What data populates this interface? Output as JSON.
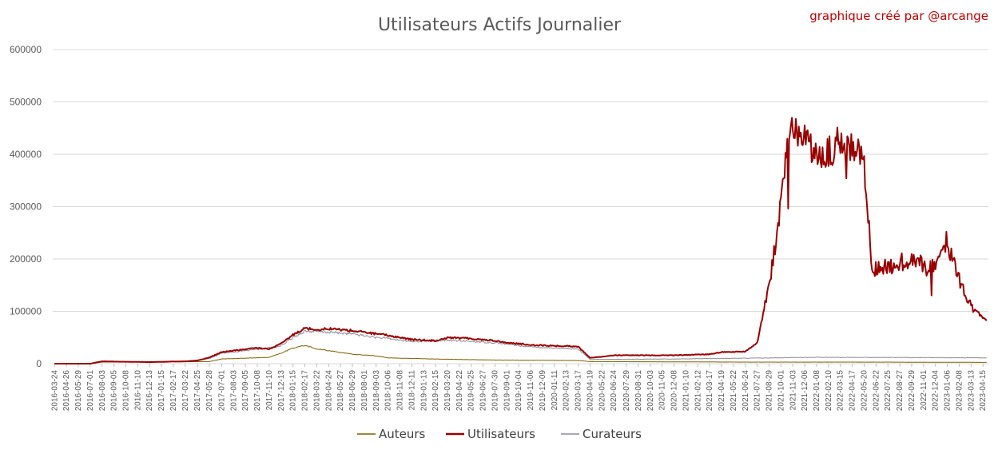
{
  "chart_data": {
    "type": "line",
    "title": "Utilisateurs Actifs Journalier",
    "credit": "graphique créé par @arcange",
    "xlabel": "",
    "ylabel": "",
    "ylim": [
      0,
      600000
    ],
    "yticks": [
      0,
      100000,
      200000,
      300000,
      400000,
      500000,
      600000
    ],
    "ytick_labels": [
      "0",
      "100000",
      "200000",
      "300000",
      "400000",
      "500000",
      "600000"
    ],
    "x_tick_labels": [
      "2016-03-24",
      "2016-04-26",
      "2016-05-29",
      "2016-07-01",
      "2016-08-03",
      "2016-09-05",
      "2016-10-08",
      "2016-11-10",
      "2016-12-13",
      "2017-01-15",
      "2017-02-17",
      "2017-03-22",
      "2017-04-25",
      "2017-05-28",
      "2017-07-01",
      "2017-08-03",
      "2017-09-05",
      "2017-10-08",
      "2017-11-10",
      "2017-12-13",
      "2018-01-15",
      "2018-02-17",
      "2018-03-22",
      "2018-04-24",
      "2018-05-27",
      "2018-06-29",
      "2018-08-01",
      "2018-09-03",
      "2018-10-06",
      "2018-11-08",
      "2018-12-11",
      "2019-01-13",
      "2019-02-15",
      "2019-03-20",
      "2019-04-22",
      "2019-05-25",
      "2019-06-27",
      "2019-07-30",
      "2019-09-01",
      "2019-10-04",
      "2019-11-06",
      "2019-12-09",
      "2020-01-11",
      "2020-02-13",
      "2020-03-17",
      "2020-04-19",
      "2020-05-22",
      "2020-06-24",
      "2020-07-29",
      "2020-08-31",
      "2020-10-03",
      "2020-11-05",
      "2020-12-08",
      "2021-01-10",
      "2021-02-12",
      "2021-03-17",
      "2021-04-19",
      "2021-05-22",
      "2021-06-24",
      "2021-07-27",
      "2021-08-29",
      "2021-10-01",
      "2021-11-03",
      "2021-12-06",
      "2022-01-08",
      "2022-02-10",
      "2022-03-15",
      "2022-04-17",
      "2022-05-20",
      "2022-06-22",
      "2022-07-25",
      "2022-08-27",
      "2022-09-29",
      "2022-11-01",
      "2022-12-04",
      "2023-01-06",
      "2023-02-08",
      "2023-03-13",
      "2023-04-15"
    ],
    "legend": {
      "position": "bottom"
    },
    "grid": true,
    "series": [
      {
        "name": "Auteurs",
        "color": "#7f6000",
        "points": [
          [
            "2016-03-24",
            0
          ],
          [
            "2016-07-01",
            0
          ],
          [
            "2016-08-03",
            3000
          ],
          [
            "2017-05-28",
            4000
          ],
          [
            "2017-07-01",
            9000
          ],
          [
            "2017-11-10",
            12000
          ],
          [
            "2017-12-13",
            20000
          ],
          [
            "2018-01-15",
            30000
          ],
          [
            "2018-02-17",
            35000
          ],
          [
            "2018-03-22",
            28000
          ],
          [
            "2018-04-24",
            25000
          ],
          [
            "2018-06-29",
            18000
          ],
          [
            "2018-09-03",
            15000
          ],
          [
            "2018-10-06",
            11000
          ],
          [
            "2018-12-11",
            10000
          ],
          [
            "2019-03-20",
            8500
          ],
          [
            "2019-07-30",
            7000
          ],
          [
            "2019-12-09",
            6500
          ],
          [
            "2020-03-17",
            6000
          ],
          [
            "2020-04-19",
            4000
          ],
          [
            "2020-12-08",
            3500
          ],
          [
            "2021-06-24",
            3000
          ],
          [
            "2021-12-06",
            3000
          ],
          [
            "2022-06-22",
            3000
          ],
          [
            "2023-04-25",
            2500
          ]
        ]
      },
      {
        "name": "Utilisateurs",
        "color": "#990000",
        "points": [
          [
            "2016-03-24",
            0
          ],
          [
            "2016-07-01",
            0
          ],
          [
            "2016-08-03",
            4500
          ],
          [
            "2016-09-05",
            4000
          ],
          [
            "2016-12-13",
            3000
          ],
          [
            "2017-03-22",
            4500
          ],
          [
            "2017-04-25",
            6000
          ],
          [
            "2017-05-28",
            12000
          ],
          [
            "2017-07-01",
            22000
          ],
          [
            "2017-08-03",
            25000
          ],
          [
            "2017-10-08",
            30000
          ],
          [
            "2017-11-10",
            28000
          ],
          [
            "2017-12-13",
            38000
          ],
          [
            "2018-01-15",
            55000
          ],
          [
            "2018-02-17",
            68000
          ],
          [
            "2018-03-22",
            65000
          ],
          [
            "2018-04-24",
            67000
          ],
          [
            "2018-06-29",
            63000
          ],
          [
            "2018-09-03",
            57000
          ],
          [
            "2018-10-06",
            54000
          ],
          [
            "2018-12-11",
            46000
          ],
          [
            "2019-02-15",
            44000
          ],
          [
            "2019-03-20",
            50000
          ],
          [
            "2019-05-25",
            48000
          ],
          [
            "2019-07-30",
            44000
          ],
          [
            "2019-09-01",
            40000
          ],
          [
            "2019-11-06",
            36000
          ],
          [
            "2020-01-11",
            34000
          ],
          [
            "2020-03-17",
            33000
          ],
          [
            "2020-04-19",
            11000
          ],
          [
            "2020-06-24",
            16000
          ],
          [
            "2020-12-08",
            16000
          ],
          [
            "2021-03-17",
            18000
          ],
          [
            "2021-04-19",
            22000
          ],
          [
            "2021-06-24",
            23000
          ],
          [
            "2021-07-27",
            40000
          ],
          [
            "2021-08-29",
            150000
          ],
          [
            "2021-10-01",
            300000
          ],
          [
            "2021-10-21",
            420000
          ],
          [
            "2021-11-03",
            450000
          ],
          [
            "2021-12-06",
            440000
          ],
          [
            "2022-01-08",
            390000
          ],
          [
            "2022-02-10",
            400000
          ],
          [
            "2022-03-15",
            430000
          ],
          [
            "2022-04-17",
            420000
          ],
          [
            "2022-05-20",
            390000
          ],
          [
            "2022-06-11",
            180000
          ],
          [
            "2022-07-25",
            185000
          ],
          [
            "2022-08-27",
            190000
          ],
          [
            "2022-09-29",
            200000
          ],
          [
            "2022-11-01",
            190000
          ],
          [
            "2022-12-04",
            185000
          ],
          [
            "2023-01-06",
            240000
          ],
          [
            "2023-02-08",
            160000
          ],
          [
            "2023-03-13",
            110000
          ],
          [
            "2023-04-25",
            82000
          ]
        ]
      },
      {
        "name": "Curateurs",
        "color": "#8c8c9a",
        "points": [
          [
            "2016-03-24",
            0
          ],
          [
            "2016-07-01",
            0
          ],
          [
            "2016-08-03",
            4000
          ],
          [
            "2017-03-22",
            4000
          ],
          [
            "2017-05-28",
            10000
          ],
          [
            "2017-07-01",
            20000
          ],
          [
            "2017-10-08",
            27000
          ],
          [
            "2017-12-13",
            34000
          ],
          [
            "2018-01-15",
            50000
          ],
          [
            "2018-02-17",
            62000
          ],
          [
            "2018-04-24",
            60000
          ],
          [
            "2018-06-29",
            57000
          ],
          [
            "2018-09-03",
            50000
          ],
          [
            "2018-10-06",
            48000
          ],
          [
            "2018-12-11",
            42000
          ],
          [
            "2019-03-20",
            45000
          ],
          [
            "2019-07-30",
            40000
          ],
          [
            "2019-11-06",
            32000
          ],
          [
            "2020-03-17",
            28000
          ],
          [
            "2020-04-19",
            8000
          ],
          [
            "2020-12-08",
            9000
          ],
          [
            "2021-04-19",
            10000
          ],
          [
            "2021-08-29",
            11000
          ],
          [
            "2021-12-06",
            12000
          ],
          [
            "2022-06-22",
            12000
          ],
          [
            "2023-04-25",
            11000
          ]
        ]
      }
    ]
  }
}
